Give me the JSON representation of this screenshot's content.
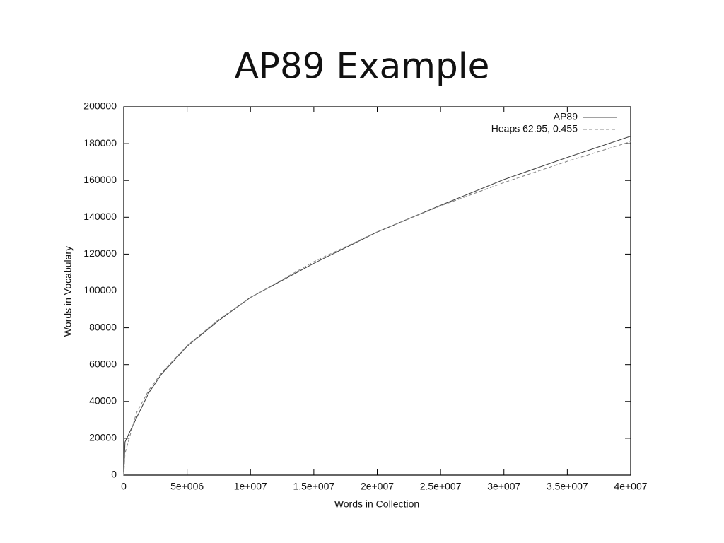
{
  "chart_data": {
    "type": "line",
    "title": "AP89 Example",
    "x_label": "Words in Collection",
    "y_label": "Words in Vocabulary",
    "x": [
      0,
      100000,
      1000000,
      2000000,
      3000000,
      5000000,
      7500000,
      10000000,
      15000000,
      20000000,
      25000000,
      30000000,
      35000000,
      40000000
    ],
    "series": [
      {
        "name": "AP89",
        "color": "#444444",
        "line_style": "solid",
        "values": [
          0,
          18000,
          31000,
          45000,
          55000,
          70000,
          84000,
          96500,
          115000,
          132000,
          146500,
          160500,
          172500,
          184000
        ]
      },
      {
        "name": "Heaps 62.95, 0.455",
        "color": "#888888",
        "line_style": "dashed",
        "values": [
          0,
          11860,
          33805,
          46340,
          55716,
          70303,
          84555,
          96360,
          115890,
          132090,
          146200,
          158840,
          170390,
          181060
        ]
      }
    ],
    "xlim": [
      0,
      40000000
    ],
    "xticks": [
      0,
      {
        "value": 5000000,
        "label": "5e+006"
      },
      {
        "value": 10000000,
        "label": "1e+007"
      },
      {
        "value": 15000000,
        "label": "1.5e+007"
      },
      {
        "value": 20000000,
        "label": "2e+007"
      },
      {
        "value": 25000000,
        "label": "2.5e+007"
      },
      {
        "value": 30000000,
        "label": "3e+007"
      },
      {
        "value": 35000000,
        "label": "3.5e+007"
      },
      {
        "value": 40000000,
        "label": "4e+007"
      }
    ],
    "ylim": [
      0,
      200000
    ],
    "yticks": [
      0,
      20000,
      40000,
      60000,
      80000,
      100000,
      120000,
      140000,
      160000,
      180000,
      200000
    ],
    "legend": "top-right"
  }
}
